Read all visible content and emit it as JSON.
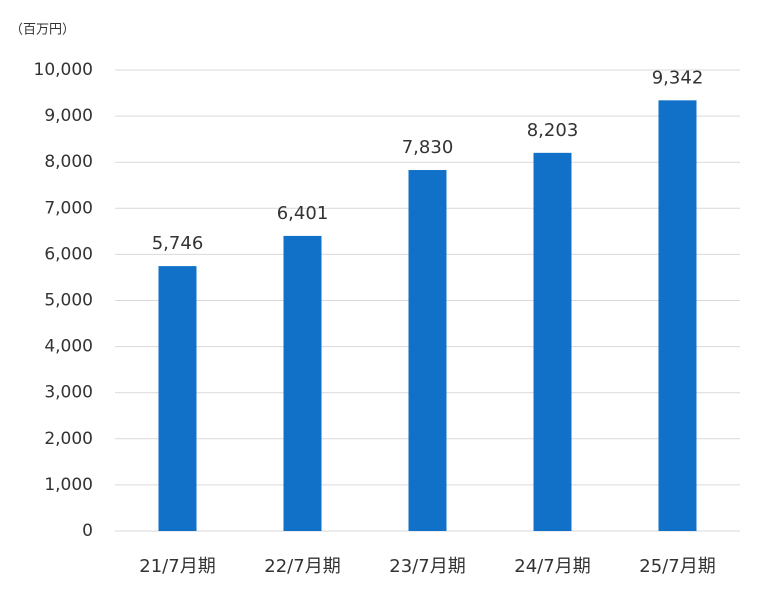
{
  "chart_data": {
    "type": "bar",
    "unit_label": "（百万円）",
    "categories": [
      "21/7月期",
      "22/7月期",
      "23/7月期",
      "24/7月期",
      "25/7月期"
    ],
    "values": [
      5746,
      6401,
      7830,
      8203,
      9342
    ],
    "value_labels": [
      "5,746",
      "6,401",
      "7,830",
      "8,203",
      "9,342"
    ],
    "color": "#1170c8",
    "ylim": [
      0,
      10000
    ],
    "yticks": [
      0,
      {
        "value": 1000,
        "label": "1,000"
      },
      {
        "value": 2000,
        "label": "2,000"
      },
      {
        "value": 3000,
        "label": "3,000"
      },
      {
        "value": 4000,
        "label": "4,000"
      },
      {
        "value": 5000,
        "label": "5,000"
      },
      {
        "value": 6000,
        "label": "6,000"
      },
      {
        "value": 7000,
        "label": "7,000"
      },
      {
        "value": 8000,
        "label": "8,000"
      },
      {
        "value": 9000,
        "label": "9,000"
      },
      {
        "value": 10000,
        "label": "10,000"
      }
    ],
    "grid": true
  }
}
